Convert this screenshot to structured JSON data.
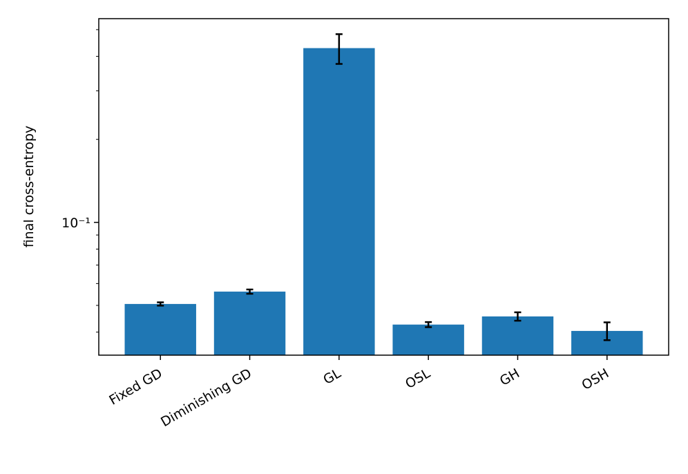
{
  "chart_data": {
    "type": "bar",
    "ylabel": "final cross-entropy",
    "categories": [
      "Fixed GD",
      "Diminishing GD",
      "GL",
      "OSL",
      "GH",
      "OSH"
    ],
    "values": [
      0.0506,
      0.0561,
      0.4285,
      0.0426,
      0.0456,
      0.0404
    ],
    "errors": [
      0.0007,
      0.001,
      0.053,
      0.0009,
      0.0016,
      0.003
    ],
    "color": "#1f77b4",
    "log_y": true,
    "ylim": [
      0.033,
      0.548
    ],
    "yticks": [
      {
        "value": 0.1,
        "label": "10⁻¹"
      }
    ],
    "yminorticks": [
      0.04,
      0.05,
      0.06,
      0.07,
      0.08,
      0.09,
      0.2,
      0.3,
      0.4,
      0.5
    ]
  }
}
